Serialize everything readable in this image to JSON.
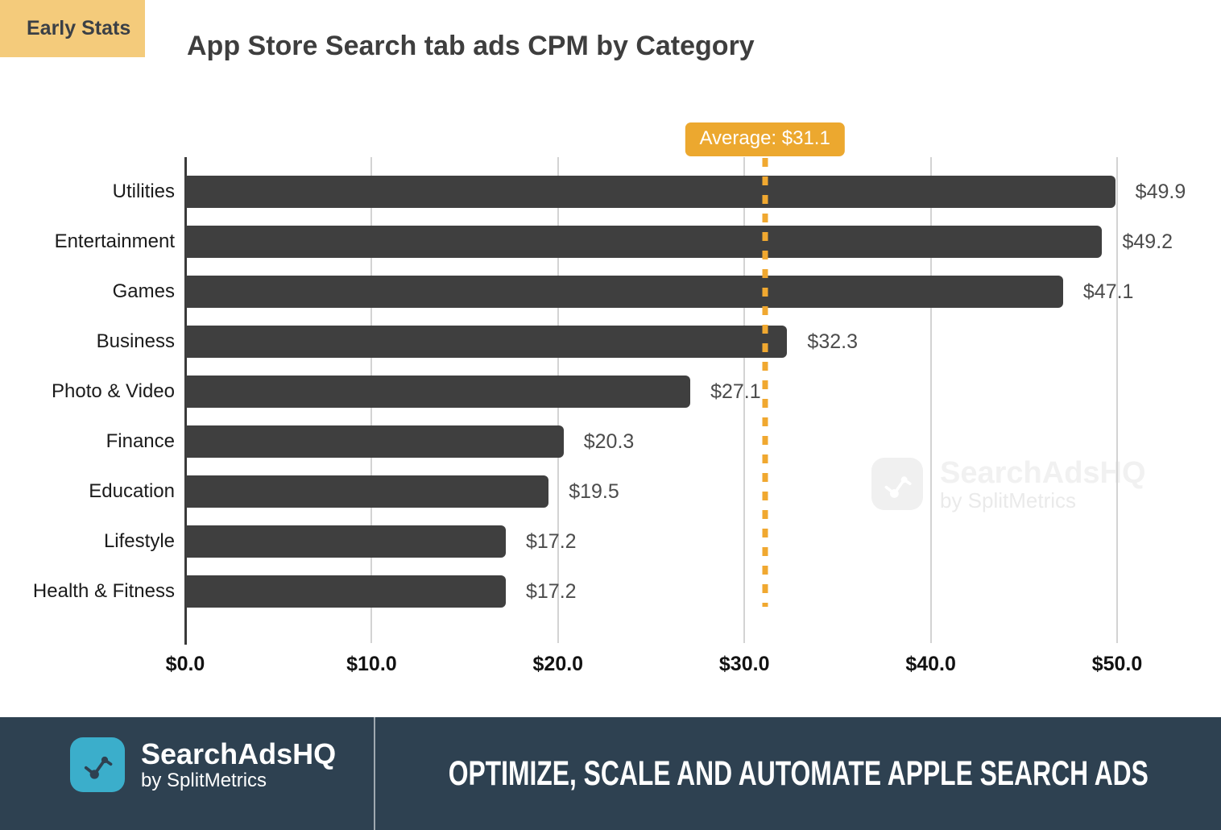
{
  "badge": {
    "label": "Early Stats"
  },
  "title": "App Store Search tab ads CPM by Category",
  "chart_data": {
    "type": "bar",
    "orientation": "horizontal",
    "title": "App Store Search tab ads CPM by Category",
    "categories": [
      "Utilities",
      "Entertainment",
      "Games",
      "Business",
      "Photo & Video",
      "Finance",
      "Education",
      "Lifestyle",
      "Health & Fitness"
    ],
    "values": [
      49.9,
      49.2,
      47.1,
      32.3,
      27.1,
      20.3,
      19.5,
      17.2,
      17.2
    ],
    "value_labels": [
      "$49.9",
      "$49.2",
      "$47.1",
      "$32.3",
      "$27.1",
      "$20.3",
      "$19.5",
      "$17.2",
      "$17.2"
    ],
    "average": 31.1,
    "average_label": "Average: $31.1",
    "x_ticks": [
      0,
      10,
      20,
      30,
      40,
      50
    ],
    "x_tick_labels": [
      "$0.0",
      "$10.0",
      "$20.0",
      "$30.0",
      "$40.0",
      "$50.0"
    ],
    "xlim": [
      0,
      50
    ],
    "grid": true,
    "legend_position": "none",
    "bar_color": "#3F3F3F",
    "average_line_color": "#F0A830"
  },
  "watermark": {
    "brand": "SearchAdsHQ",
    "sub": "by SplitMetrics"
  },
  "footer": {
    "brand": "SearchAdsHQ",
    "sub": "by SplitMetrics",
    "slogan": "OPTIMIZE, SCALE AND AUTOMATE APPLE SEARCH ADS"
  },
  "colors": {
    "early_badge_bg": "#F4CB7B",
    "bar": "#3F3F3F",
    "average_accent": "#ECA82F",
    "footer_bg": "#2E4151",
    "logo_teal": "#3BAECB"
  }
}
